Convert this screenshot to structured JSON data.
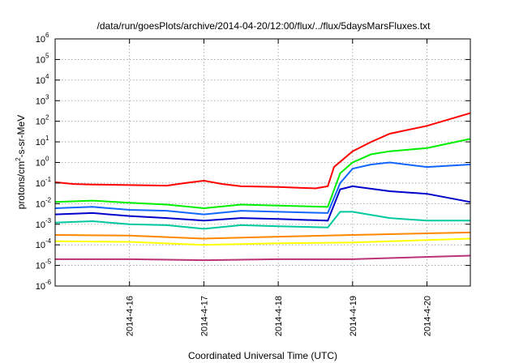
{
  "chart_data": {
    "type": "line",
    "title": "/data/run/goesPlots/archive/2014-04-20/12:00/flux/../flux/5daysMarsFluxes.txt",
    "xlabel": "Coordinated Universal Time (UTC)",
    "ylabel_parts": {
      "base": "protons/cm",
      "sup": "2",
      "rest": "-s-sr-MeV"
    },
    "y_scale": "log",
    "ylim": [
      1e-06,
      1000000.0
    ],
    "y_ticks": [
      {
        "base": "10",
        "exp": "-6",
        "value": 1e-06
      },
      {
        "base": "10",
        "exp": "-5",
        "value": 1e-05
      },
      {
        "base": "10",
        "exp": "-4",
        "value": 0.0001
      },
      {
        "base": "10",
        "exp": "-3",
        "value": 0.001
      },
      {
        "base": "10",
        "exp": "-2",
        "value": 0.01
      },
      {
        "base": "10",
        "exp": "-1",
        "value": 0.1
      },
      {
        "base": "10",
        "exp": "0",
        "value": 1
      },
      {
        "base": "10",
        "exp": "1",
        "value": 10
      },
      {
        "base": "10",
        "exp": "2",
        "value": 100
      },
      {
        "base": "10",
        "exp": "3",
        "value": 1000
      },
      {
        "base": "10",
        "exp": "4",
        "value": 10000
      },
      {
        "base": "10",
        "exp": "5",
        "value": 100000
      },
      {
        "base": "10",
        "exp": "6",
        "value": 1000000
      }
    ],
    "xlim": [
      "2014-04-15T00:00",
      "2014-04-20T14:00"
    ],
    "x_ticks": [
      {
        "label": "2014-4-16",
        "value": "2014-04-16T00:00"
      },
      {
        "label": "2014-4-17",
        "value": "2014-04-17T00:00"
      },
      {
        "label": "2014-4-18",
        "value": "2014-04-18T00:00"
      },
      {
        "label": "2014-4-19",
        "value": "2014-04-19T00:00"
      },
      {
        "label": "2014-4-20",
        "value": "2014-04-20T00:00"
      }
    ],
    "grid": true,
    "legend": "none",
    "series": [
      {
        "color": "#ff0000",
        "points": [
          [
            "2014-04-15T00:00",
            0.11
          ],
          [
            "2014-04-15T06:00",
            0.09
          ],
          [
            "2014-04-15T12:00",
            0.085
          ],
          [
            "2014-04-16T00:00",
            0.08
          ],
          [
            "2014-04-16T12:00",
            0.075
          ],
          [
            "2014-04-16T18:00",
            0.1
          ],
          [
            "2014-04-17T00:00",
            0.13
          ],
          [
            "2014-04-17T06:00",
            0.09
          ],
          [
            "2014-04-17T12:00",
            0.07
          ],
          [
            "2014-04-18T00:00",
            0.065
          ],
          [
            "2014-04-18T12:00",
            0.055
          ],
          [
            "2014-04-18T16:00",
            0.07
          ],
          [
            "2014-04-18T18:00",
            0.6
          ],
          [
            "2014-04-19T00:00",
            3.5
          ],
          [
            "2014-04-19T06:00",
            10
          ],
          [
            "2014-04-19T12:00",
            25
          ],
          [
            "2014-04-20T00:00",
            60
          ],
          [
            "2014-04-20T14:00",
            250
          ]
        ]
      },
      {
        "color": "#00ee00",
        "points": [
          [
            "2014-04-15T00:00",
            0.012
          ],
          [
            "2014-04-15T12:00",
            0.014
          ],
          [
            "2014-04-16T00:00",
            0.011
          ],
          [
            "2014-04-16T12:00",
            0.009
          ],
          [
            "2014-04-17T00:00",
            0.006
          ],
          [
            "2014-04-17T12:00",
            0.009
          ],
          [
            "2014-04-18T00:00",
            0.008
          ],
          [
            "2014-04-18T16:00",
            0.007
          ],
          [
            "2014-04-18T20:00",
            0.3
          ],
          [
            "2014-04-19T00:00",
            1.0
          ],
          [
            "2014-04-19T06:00",
            2.5
          ],
          [
            "2014-04-19T12:00",
            3.5
          ],
          [
            "2014-04-20T00:00",
            5
          ],
          [
            "2014-04-20T14:00",
            14
          ]
        ]
      },
      {
        "color": "#1166ff",
        "points": [
          [
            "2014-04-15T00:00",
            0.006
          ],
          [
            "2014-04-15T12:00",
            0.007
          ],
          [
            "2014-04-16T00:00",
            0.005
          ],
          [
            "2014-04-16T12:00",
            0.0045
          ],
          [
            "2014-04-17T00:00",
            0.003
          ],
          [
            "2014-04-17T12:00",
            0.0045
          ],
          [
            "2014-04-18T00:00",
            0.004
          ],
          [
            "2014-04-18T16:00",
            0.0035
          ],
          [
            "2014-04-18T20:00",
            0.1
          ],
          [
            "2014-04-19T00:00",
            0.5
          ],
          [
            "2014-04-19T06:00",
            0.8
          ],
          [
            "2014-04-19T12:00",
            1.0
          ],
          [
            "2014-04-20T00:00",
            0.6
          ],
          [
            "2014-04-20T14:00",
            0.8
          ]
        ]
      },
      {
        "color": "#0000cc",
        "points": [
          [
            "2014-04-15T00:00",
            0.003
          ],
          [
            "2014-04-15T12:00",
            0.0035
          ],
          [
            "2014-04-16T00:00",
            0.0025
          ],
          [
            "2014-04-16T12:00",
            0.002
          ],
          [
            "2014-04-17T00:00",
            0.0015
          ],
          [
            "2014-04-17T12:00",
            0.002
          ],
          [
            "2014-04-18T00:00",
            0.0018
          ],
          [
            "2014-04-18T16:00",
            0.0015
          ],
          [
            "2014-04-18T20:00",
            0.05
          ],
          [
            "2014-04-19T00:00",
            0.07
          ],
          [
            "2014-04-19T12:00",
            0.04
          ],
          [
            "2014-04-20T00:00",
            0.03
          ],
          [
            "2014-04-20T14:00",
            0.012
          ]
        ]
      },
      {
        "color": "#00c8a0",
        "points": [
          [
            "2014-04-15T00:00",
            0.0012
          ],
          [
            "2014-04-15T12:00",
            0.0014
          ],
          [
            "2014-04-16T00:00",
            0.001
          ],
          [
            "2014-04-16T12:00",
            0.0009
          ],
          [
            "2014-04-17T00:00",
            0.0006
          ],
          [
            "2014-04-17T12:00",
            0.0009
          ],
          [
            "2014-04-18T00:00",
            0.0008
          ],
          [
            "2014-04-18T16:00",
            0.0007
          ],
          [
            "2014-04-18T20:00",
            0.004
          ],
          [
            "2014-04-19T00:00",
            0.004
          ],
          [
            "2014-04-19T12:00",
            0.002
          ],
          [
            "2014-04-20T00:00",
            0.0015
          ],
          [
            "2014-04-20T14:00",
            0.0015
          ]
        ]
      },
      {
        "color": "#ff8800",
        "points": [
          [
            "2014-04-15T00:00",
            0.0003
          ],
          [
            "2014-04-16T00:00",
            0.00028
          ],
          [
            "2014-04-17T00:00",
            0.0002
          ],
          [
            "2014-04-18T00:00",
            0.00025
          ],
          [
            "2014-04-19T00:00",
            0.0003
          ],
          [
            "2014-04-20T14:00",
            0.0004
          ]
        ]
      },
      {
        "color": "#ffff00",
        "points": [
          [
            "2014-04-15T00:00",
            0.00015
          ],
          [
            "2014-04-16T00:00",
            0.00014
          ],
          [
            "2014-04-17T00:00",
            0.0001
          ],
          [
            "2014-04-18T00:00",
            0.00012
          ],
          [
            "2014-04-19T00:00",
            0.00013
          ],
          [
            "2014-04-20T14:00",
            0.0002
          ]
        ]
      },
      {
        "color": "#bb3377",
        "points": [
          [
            "2014-04-15T00:00",
            2e-05
          ],
          [
            "2014-04-16T00:00",
            2e-05
          ],
          [
            "2014-04-17T00:00",
            1.8e-05
          ],
          [
            "2014-04-18T00:00",
            2e-05
          ],
          [
            "2014-04-19T00:00",
            2e-05
          ],
          [
            "2014-04-20T14:00",
            3e-05
          ]
        ]
      }
    ]
  }
}
